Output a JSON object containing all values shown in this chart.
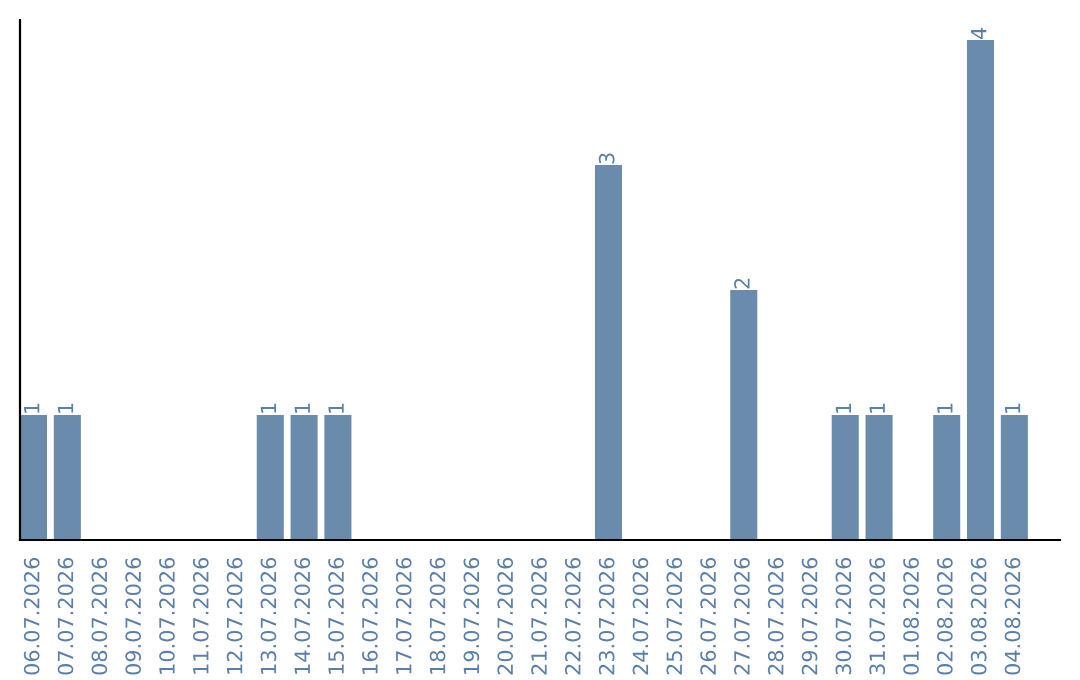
{
  "chart_data": {
    "type": "bar",
    "categories": [
      "06.07.2026",
      "07.07.2026",
      "08.07.2026",
      "09.07.2026",
      "10.07.2026",
      "11.07.2026",
      "12.07.2026",
      "13.07.2026",
      "14.07.2026",
      "15.07.2026",
      "16.07.2026",
      "17.07.2026",
      "18.07.2026",
      "19.07.2026",
      "20.07.2026",
      "21.07.2026",
      "22.07.2026",
      "23.07.2026",
      "24.07.2026",
      "25.07.2026",
      "26.07.2026",
      "27.07.2026",
      "28.07.2026",
      "29.07.2026",
      "30.07.2026",
      "31.07.2026",
      "01.08.2026",
      "02.08.2026",
      "03.08.2026",
      "04.08.2026"
    ],
    "values": [
      1,
      1,
      0,
      0,
      0,
      0,
      0,
      1,
      1,
      1,
      0,
      0,
      0,
      0,
      0,
      0,
      0,
      3,
      0,
      0,
      0,
      2,
      0,
      0,
      1,
      1,
      0,
      1,
      4,
      1
    ],
    "value_labels": [
      "1",
      "1",
      null,
      null,
      null,
      null,
      null,
      "1",
      "1",
      "1",
      null,
      null,
      null,
      null,
      null,
      null,
      null,
      "3",
      null,
      null,
      null,
      "2",
      null,
      null,
      "1",
      "1",
      null,
      "1",
      "4",
      "1"
    ],
    "color": "#6a8bab",
    "tick_labels": "x",
    "grid": false,
    "legend": false
  }
}
